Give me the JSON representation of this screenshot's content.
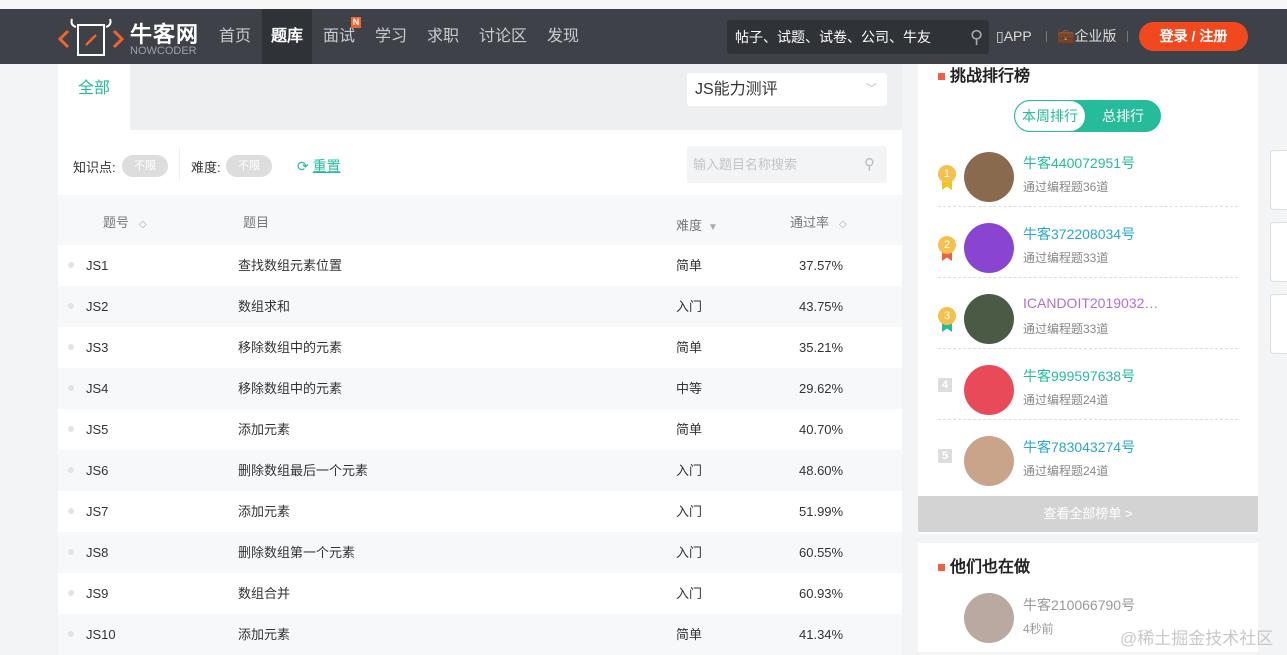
{
  "nav": {
    "logo_text": "牛客网",
    "logo_sub": "NOWCODER",
    "items": [
      {
        "label": "首页"
      },
      {
        "label": "题库",
        "active": true
      },
      {
        "label": "面试",
        "badge": "N"
      },
      {
        "label": "学习"
      },
      {
        "label": "求职"
      },
      {
        "label": "讨论区"
      },
      {
        "label": "发现"
      }
    ],
    "search_placeholder": "帖子、试题、试卷、公司、牛友",
    "app": "APP",
    "enterprise": "企业版",
    "login": "登录 / 注册"
  },
  "main": {
    "tab": "全部",
    "dropdown": "JS能力测评",
    "filters": {
      "knowledge_label": "知识点:",
      "knowledge_value": "不限",
      "difficulty_label": "难度:",
      "difficulty_value": "不限",
      "reset": "重置",
      "search_placeholder": "输入题目名称搜索"
    },
    "columns": {
      "id": "题号",
      "title": "题目",
      "difficulty": "难度",
      "pass_rate": "通过率"
    },
    "rows": [
      {
        "id": "JS1",
        "title": "查找数组元素位置",
        "difficulty": "简单",
        "rate": "37.57%"
      },
      {
        "id": "JS2",
        "title": "数组求和",
        "difficulty": "入门",
        "rate": "43.75%"
      },
      {
        "id": "JS3",
        "title": "移除数组中的元素",
        "difficulty": "简单",
        "rate": "35.21%"
      },
      {
        "id": "JS4",
        "title": "移除数组中的元素",
        "difficulty": "中等",
        "rate": "29.62%"
      },
      {
        "id": "JS5",
        "title": "添加元素",
        "difficulty": "简单",
        "rate": "40.70%"
      },
      {
        "id": "JS6",
        "title": "删除数组最后一个元素",
        "difficulty": "入门",
        "rate": "48.60%"
      },
      {
        "id": "JS7",
        "title": "添加元素",
        "difficulty": "入门",
        "rate": "51.99%"
      },
      {
        "id": "JS8",
        "title": "删除数组第一个元素",
        "difficulty": "入门",
        "rate": "60.55%"
      },
      {
        "id": "JS9",
        "title": "数组合并",
        "difficulty": "入门",
        "rate": "60.93%"
      },
      {
        "id": "JS10",
        "title": "添加元素",
        "difficulty": "简单",
        "rate": "41.34%"
      }
    ]
  },
  "leaderboard": {
    "title": "挑战排行榜",
    "tab_week": "本周排行",
    "tab_total": "总排行",
    "entries": [
      {
        "rank": "1",
        "name": "牛客440072951号",
        "sub": "通过编程题36道",
        "name_color": "#25bb9b",
        "avatar": "#8a6a4f",
        "ribbon": "#f0c419"
      },
      {
        "rank": "2",
        "name": "牛客372208034号",
        "sub": "通过编程题33道",
        "name_color": "#2aa7c9",
        "avatar": "#8a45d0",
        "ribbon": "#f0603f"
      },
      {
        "rank": "3",
        "name": "ICANDOIT2019032…",
        "sub": "通过编程题33道",
        "name_color": "#b36fd8",
        "avatar": "#4a5a45",
        "ribbon": "#25bb9b"
      },
      {
        "rank": "4",
        "name": "牛客999597638号",
        "sub": "通过编程题24道",
        "name_color": "#25bb9b",
        "avatar": "#e84a5a"
      },
      {
        "rank": "5",
        "name": "牛客783043274号",
        "sub": "通过编程题24道",
        "name_color": "#2aa7c9",
        "avatar": "#c9a38a"
      }
    ],
    "view_all": "查看全部榜单 >"
  },
  "also_doing": {
    "title": "他们也在做",
    "user": "牛客210066790号",
    "time": "4秒前"
  },
  "watermark": "@稀土掘金技术社区"
}
